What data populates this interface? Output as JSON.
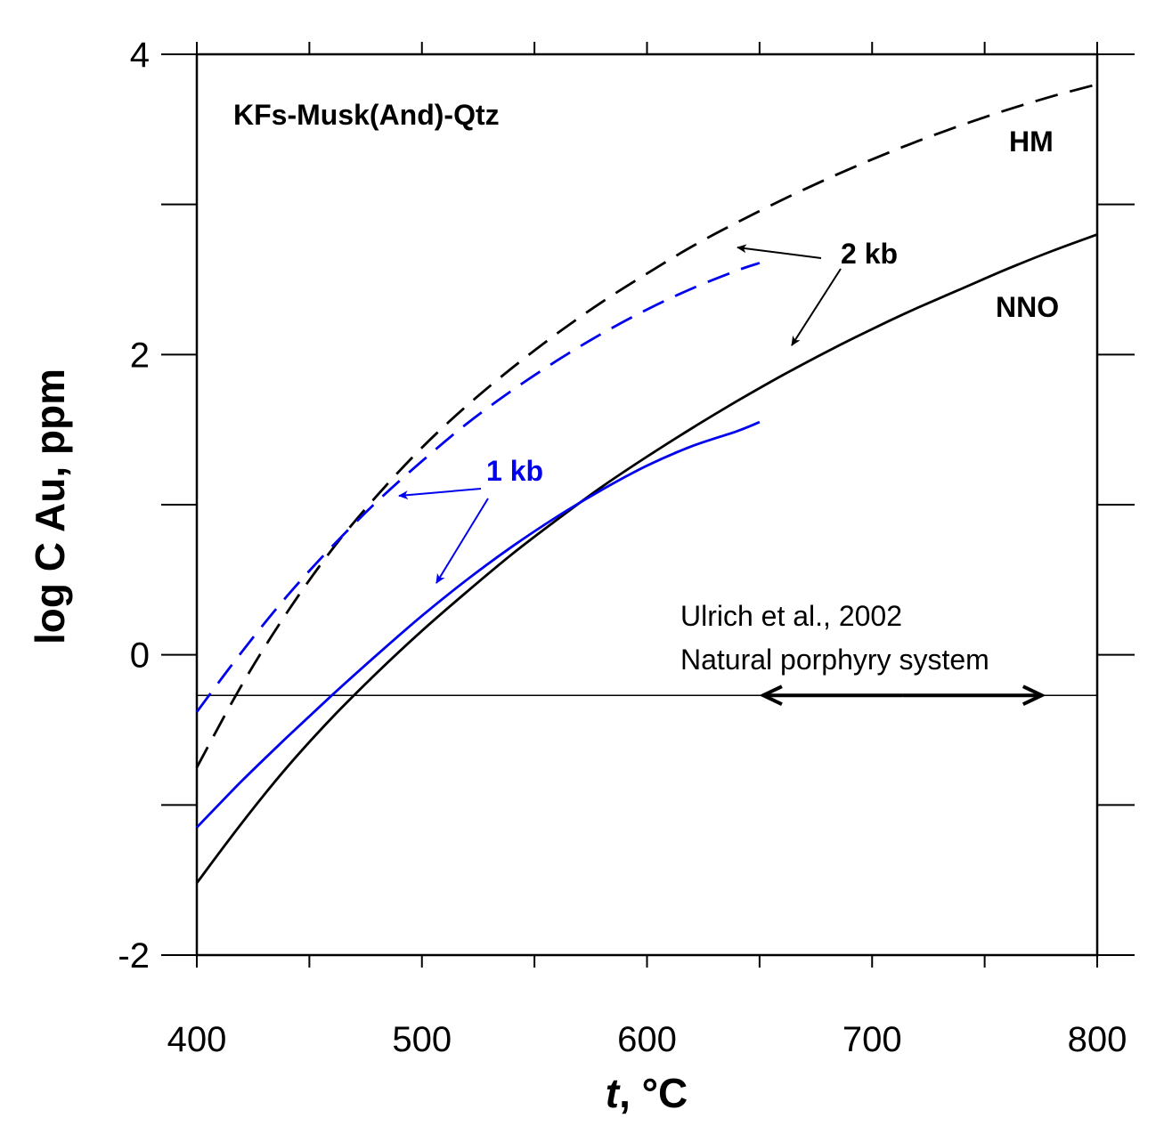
{
  "chart_data": {
    "type": "line",
    "title": "KFs-Musk(And)-Qtz",
    "xlabel_var": "t",
    "xlabel_unit": ", °C",
    "ylabel": "log C Au, ppm",
    "xlim": [
      400,
      800
    ],
    "ylim": [
      -2,
      4
    ],
    "x_ticks": [
      400,
      500,
      600,
      700,
      800
    ],
    "y_ticks": [
      -2,
      0,
      2,
      4
    ],
    "x_minor_step": 50,
    "y_minor_step": 1,
    "reference_line": {
      "y": -0.27,
      "color": "#000000"
    },
    "series": [
      {
        "name": "HM 2 kb",
        "color": "#000000",
        "dashed": true,
        "x": [
          400,
          420,
          440,
          460,
          480,
          500,
          520,
          540,
          560,
          580,
          600,
          620,
          640,
          660,
          680,
          700,
          720,
          740,
          760,
          780,
          800
        ],
        "y": [
          -0.75,
          -0.2,
          0.28,
          0.7,
          1.06,
          1.38,
          1.66,
          1.91,
          2.14,
          2.35,
          2.54,
          2.72,
          2.88,
          3.03,
          3.17,
          3.3,
          3.42,
          3.53,
          3.63,
          3.72,
          3.8
        ]
      },
      {
        "name": "NNO 2 kb",
        "color": "#000000",
        "dashed": false,
        "x": [
          400,
          420,
          440,
          460,
          480,
          500,
          520,
          540,
          560,
          580,
          600,
          620,
          640,
          660,
          680,
          700,
          720,
          740,
          760,
          780,
          800
        ],
        "y": [
          -1.52,
          -1.12,
          -0.75,
          -0.42,
          -0.12,
          0.16,
          0.42,
          0.67,
          0.9,
          1.12,
          1.32,
          1.51,
          1.69,
          1.86,
          2.02,
          2.17,
          2.31,
          2.44,
          2.57,
          2.69,
          2.8
        ]
      },
      {
        "name": "HM 1 kb",
        "color": "#0000ee",
        "dashed": true,
        "x": [
          400,
          420,
          440,
          460,
          480,
          500,
          520,
          540,
          560,
          580,
          600,
          620,
          640,
          650
        ],
        "y": [
          -0.38,
          0.02,
          0.39,
          0.72,
          1.02,
          1.29,
          1.54,
          1.76,
          1.96,
          2.14,
          2.3,
          2.44,
          2.56,
          2.61
        ]
      },
      {
        "name": "NNO 1 kb",
        "color": "#0000ee",
        "dashed": false,
        "x": [
          400,
          420,
          440,
          460,
          480,
          500,
          520,
          540,
          560,
          580,
          600,
          620,
          640,
          650
        ],
        "y": [
          -1.15,
          -0.84,
          -0.55,
          -0.27,
          0.0,
          0.26,
          0.5,
          0.72,
          0.92,
          1.1,
          1.26,
          1.39,
          1.49,
          1.55
        ]
      }
    ],
    "annotations": {
      "hm": "HM",
      "nno": "NNO",
      "two_kb": "2 kb",
      "one_kb": "1 kb",
      "ref_line1": "Ulrich et al., 2002",
      "ref_line2": "Natural porphyry system",
      "range_x": [
        652,
        775
      ]
    }
  }
}
